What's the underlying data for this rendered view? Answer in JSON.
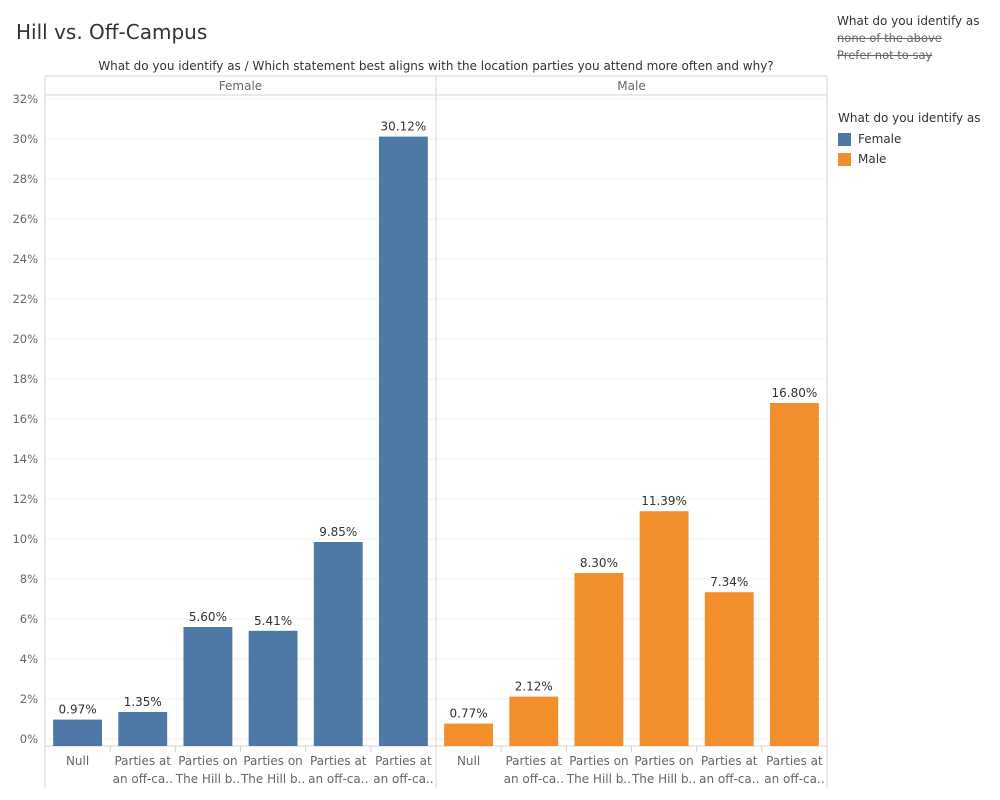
{
  "title": "Hill vs. Off-Campus",
  "filter": {
    "header": "What do you identify as",
    "excluded": [
      "none of the above",
      "Prefer not to say"
    ]
  },
  "legend": {
    "header": "What do you identify as",
    "items": [
      {
        "label": "Female",
        "color": "#4e79a7"
      },
      {
        "label": "Male",
        "color": "#f28e2b"
      }
    ]
  },
  "chart_data": {
    "type": "bar",
    "title": "What do you identify as  /  Which statement best aligns with the location parties you attend more often and why?",
    "ylim": [
      0,
      32
    ],
    "yticks": [
      "0%",
      "2%",
      "4%",
      "6%",
      "8%",
      "10%",
      "12%",
      "14%",
      "16%",
      "18%",
      "20%",
      "22%",
      "24%",
      "26%",
      "28%",
      "30%",
      "32%"
    ],
    "grid": true,
    "panels": [
      {
        "name": "Female",
        "color": "#4e79a7",
        "categories": [
          [
            "Null"
          ],
          [
            "Parties at",
            "an off-ca.."
          ],
          [
            "Parties on",
            "The Hill b.."
          ],
          [
            "Parties on",
            "The Hill b.."
          ],
          [
            "Parties at",
            "an off-ca.."
          ],
          [
            "Parties at",
            "an off-ca.."
          ]
        ],
        "values": [
          0.97,
          1.35,
          5.6,
          5.41,
          9.85,
          30.12
        ],
        "labels": [
          "0.97%",
          "1.35%",
          "5.60%",
          "5.41%",
          "9.85%",
          "30.12%"
        ]
      },
      {
        "name": "Male",
        "color": "#f28e2b",
        "categories": [
          [
            "Null"
          ],
          [
            "Parties at",
            "an off-ca.."
          ],
          [
            "Parties on",
            "The Hill b.."
          ],
          [
            "Parties on",
            "The Hill b.."
          ],
          [
            "Parties at",
            "an off-ca.."
          ],
          [
            "Parties at",
            "an off-ca.."
          ]
        ],
        "values": [
          0.77,
          2.12,
          8.3,
          11.39,
          7.34,
          16.8
        ],
        "labels": [
          "0.77%",
          "2.12%",
          "8.30%",
          "11.39%",
          "7.34%",
          "16.80%"
        ]
      }
    ]
  }
}
